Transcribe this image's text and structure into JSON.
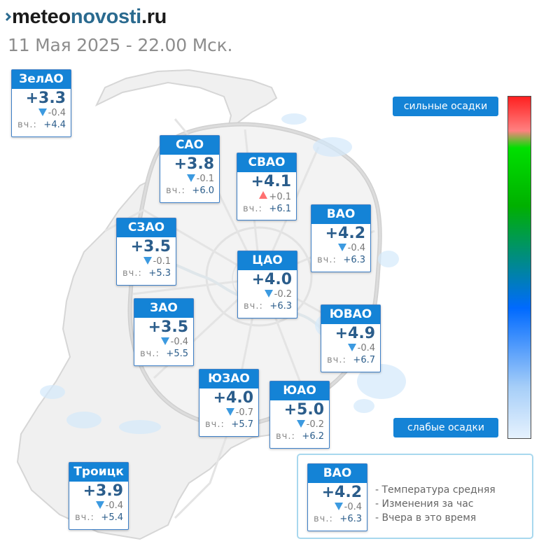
{
  "header": {
    "logo": {
      "part1": "meteo",
      "part2": "novosti",
      "part3": ".ru"
    },
    "datetime": "11 Мая 2025 - 22.00 Мск."
  },
  "districts": [
    {
      "name": "ЗелАО",
      "temp": "+3.3",
      "trend": "down",
      "change": "-0.4",
      "yesterday_label": "вч.:",
      "yesterday": "+4.4"
    },
    {
      "name": "САО",
      "temp": "+3.8",
      "trend": "down",
      "change": "-0.1",
      "yesterday_label": "вч.:",
      "yesterday": "+6.0"
    },
    {
      "name": "СВАО",
      "temp": "+4.1",
      "trend": "up",
      "change": "+0.1",
      "yesterday_label": "вч.:",
      "yesterday": "+6.1"
    },
    {
      "name": "ВАО",
      "temp": "+4.2",
      "trend": "down",
      "change": "-0.4",
      "yesterday_label": "вч.:",
      "yesterday": "+6.3"
    },
    {
      "name": "СЗАО",
      "temp": "+3.5",
      "trend": "down",
      "change": "-0.1",
      "yesterday_label": "вч.:",
      "yesterday": "+5.3"
    },
    {
      "name": "ЦАО",
      "temp": "+4.0",
      "trend": "down",
      "change": "-0.2",
      "yesterday_label": "вч.:",
      "yesterday": "+6.3"
    },
    {
      "name": "ЗАО",
      "temp": "+3.5",
      "trend": "down",
      "change": "-0.4",
      "yesterday_label": "вч.:",
      "yesterday": "+5.5"
    },
    {
      "name": "ЮВАО",
      "temp": "+4.9",
      "trend": "down",
      "change": "-0.4",
      "yesterday_label": "вч.:",
      "yesterday": "+6.7"
    },
    {
      "name": "ЮЗАО",
      "temp": "+4.0",
      "trend": "down",
      "change": "-0.7",
      "yesterday_label": "вч.:",
      "yesterday": "+5.7"
    },
    {
      "name": "ЮАО",
      "temp": "+5.0",
      "trend": "down",
      "change": "-0.2",
      "yesterday_label": "вч.:",
      "yesterday": "+6.2"
    },
    {
      "name": "Троицк",
      "temp": "+3.9",
      "trend": "down",
      "change": "-0.4",
      "yesterday_label": "вч.:",
      "yesterday": "+5.4"
    }
  ],
  "scale": {
    "top_label": "сильные осадки",
    "bottom_label": "слабые осадки"
  },
  "legend": {
    "sample": {
      "name": "ВАО",
      "temp": "+4.2",
      "trend": "down",
      "change": "-0.4",
      "yesterday_label": "вч.:",
      "yesterday": "+6.3"
    },
    "lines": [
      "- Температура средняя",
      "- Изменения за час",
      "- Вчера в это время"
    ]
  },
  "colors": {
    "card_header": "#1483d6",
    "temp_text": "#2b5d8b",
    "down_arrow": "#3c9ae0",
    "up_arrow": "#ff7070"
  }
}
